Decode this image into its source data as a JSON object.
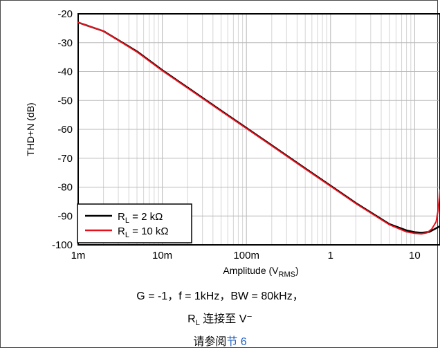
{
  "chart_data": {
    "type": "line",
    "xlabel": "Amplitude (V",
    "xlabel_sub": "RMS",
    "xlabel_end": ")",
    "ylabel": "THD+N (dB)",
    "xscale": "log",
    "xlim": [
      0.001,
      20
    ],
    "ylim": [
      -100,
      -20
    ],
    "grid": true,
    "legend_placement": "bottom-left",
    "x_ticks": [
      0.001,
      0.01,
      0.1,
      1,
      10
    ],
    "x_tick_labels": [
      "1m",
      "10m",
      "100m",
      "1",
      "10"
    ],
    "y_ticks": [
      -20,
      -30,
      -40,
      -50,
      -60,
      -70,
      -80,
      -90,
      -100
    ],
    "y_tick_labels": [
      "-20",
      "-30",
      "-40",
      "-50",
      "-60",
      "-70",
      "-80",
      "-90",
      "-100"
    ],
    "series": [
      {
        "name_main": "R",
        "name_sub": "L",
        "name_rest": " = 2 kΩ",
        "color": "#000000",
        "x": [
          0.001,
          0.002,
          0.005,
          0.01,
          0.02,
          0.05,
          0.1,
          0.2,
          0.5,
          1,
          2,
          5,
          8,
          10,
          12,
          15,
          20
        ],
        "y": [
          -23.0,
          -26.0,
          -33.0,
          -39.5,
          -45.5,
          -53.5,
          -59.5,
          -65.5,
          -73.5,
          -79.5,
          -85.5,
          -92.8,
          -95.0,
          -95.6,
          -95.8,
          -95.5,
          -93.5
        ]
      },
      {
        "name_main": "R",
        "name_sub": "L",
        "name_rest": " = 10 kΩ",
        "color": "#e8101a",
        "x": [
          0.001,
          0.002,
          0.005,
          0.01,
          0.02,
          0.05,
          0.1,
          0.2,
          0.5,
          1,
          2,
          5,
          8,
          10,
          12,
          14,
          16,
          18,
          19,
          20
        ],
        "y": [
          -23.0,
          -26.0,
          -33.2,
          -39.7,
          -45.7,
          -53.7,
          -59.7,
          -65.7,
          -73.7,
          -79.7,
          -85.7,
          -93.0,
          -95.5,
          -96.0,
          -96.2,
          -95.8,
          -94.5,
          -92.0,
          -88.0,
          -81.0
        ]
      }
    ]
  },
  "caption": {
    "line1": "G = -1，f = 1kHz，BW = 80kHz，",
    "line2_main": "R",
    "line2_sub": "L",
    "line2_rest": " 连接至 V⁻",
    "line3_text": "请参阅",
    "line3_link": "节 6"
  }
}
